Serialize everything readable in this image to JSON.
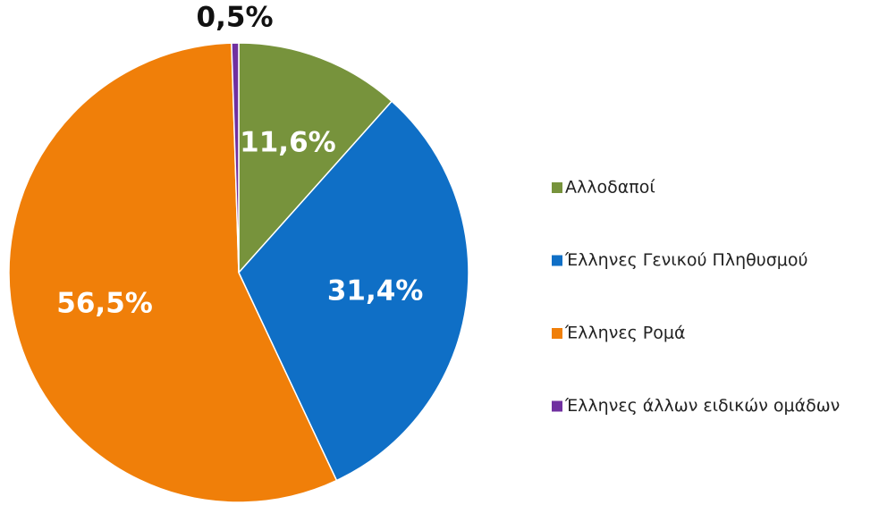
{
  "chart_data": {
    "type": "pie",
    "categories": [
      "Αλλοδαποί",
      "Έλληνες Γενικού Πληθυσμού",
      "Έλληνες Ρομά",
      "Έλληνες άλλων ειδικών ομάδων"
    ],
    "values": [
      11.6,
      31.4,
      56.5,
      0.5
    ],
    "value_labels": [
      "11,6%",
      "31,4%",
      "56,5%",
      "0,5%"
    ],
    "colors": [
      "#77933c",
      "#0f6fc6",
      "#f07f09",
      "#7030a0"
    ],
    "legend": "right"
  }
}
